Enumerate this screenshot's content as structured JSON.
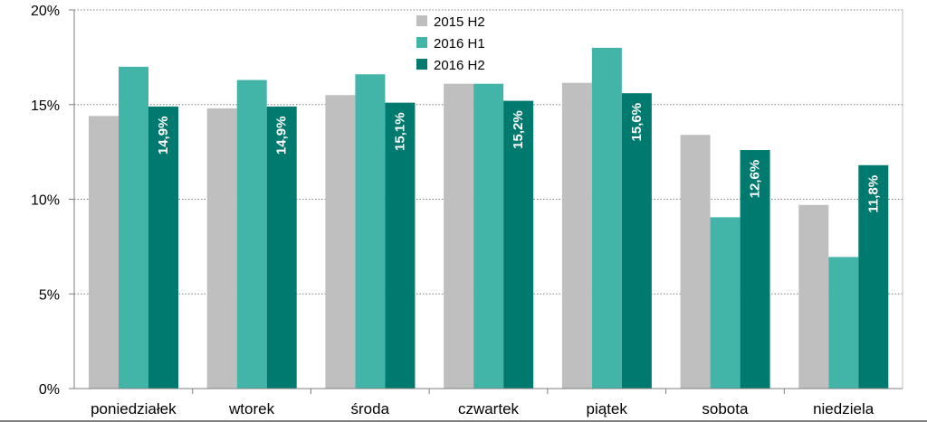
{
  "chart_data": {
    "type": "bar",
    "categories": [
      "poniedziałek",
      "wtorek",
      "środa",
      "czwartek",
      "piątek",
      "sobota",
      "niedziela"
    ],
    "series": [
      {
        "name": "2015 H2",
        "color": "#bfbfbf",
        "values": [
          14.4,
          14.8,
          15.5,
          16.1,
          16.15,
          13.4,
          9.7
        ],
        "labels": null
      },
      {
        "name": "2016 H1",
        "color": "#43b5a8",
        "values": [
          17.0,
          16.3,
          16.6,
          16.1,
          18.0,
          9.05,
          6.95
        ],
        "labels": null
      },
      {
        "name": "2016 H2",
        "color": "#007a6e",
        "values": [
          14.9,
          14.9,
          15.1,
          15.2,
          15.6,
          12.6,
          11.8
        ],
        "labels": [
          "14,9%",
          "14,9%",
          "15,1%",
          "15,2%",
          "15,6%",
          "12,6%",
          "11,8%"
        ]
      }
    ],
    "y_ticks": [
      {
        "value": 0,
        "label": "0%"
      },
      {
        "value": 5,
        "label": "5%"
      },
      {
        "value": 10,
        "label": "10%"
      },
      {
        "value": 15,
        "label": "15%"
      },
      {
        "value": 20,
        "label": "20%"
      }
    ],
    "ylim": [
      0,
      20
    ],
    "grid": "horizontal dotted",
    "legend_position": "top-center",
    "title": "",
    "xlabel": "",
    "ylabel": ""
  }
}
